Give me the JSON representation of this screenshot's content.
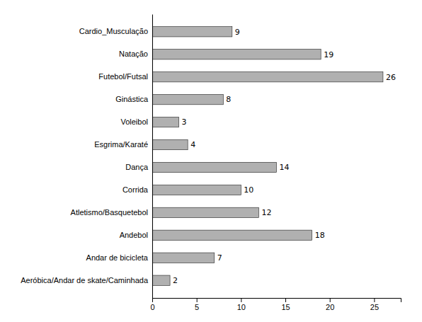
{
  "chart_data": {
    "type": "bar",
    "orientation": "horizontal",
    "categories": [
      "Aeróbica/Andar de skate/Caminhada",
      "Andar de bicicleta",
      "Andebol",
      "Atletismo/Basquetebol",
      "Corrida",
      "Dança",
      "Esgrima/Karaté",
      "Voleibol",
      "Ginástica",
      "Futebol/Futsal",
      "Natação",
      "Cardio_Musculação"
    ],
    "values": [
      2,
      7,
      18,
      12,
      10,
      14,
      4,
      3,
      8,
      26,
      19,
      9
    ],
    "color": "#b0b0b0",
    "xlim": [
      0,
      28
    ],
    "xticks": [
      0,
      5,
      10,
      15,
      20,
      25
    ],
    "data_labels": true,
    "grid": false
  }
}
